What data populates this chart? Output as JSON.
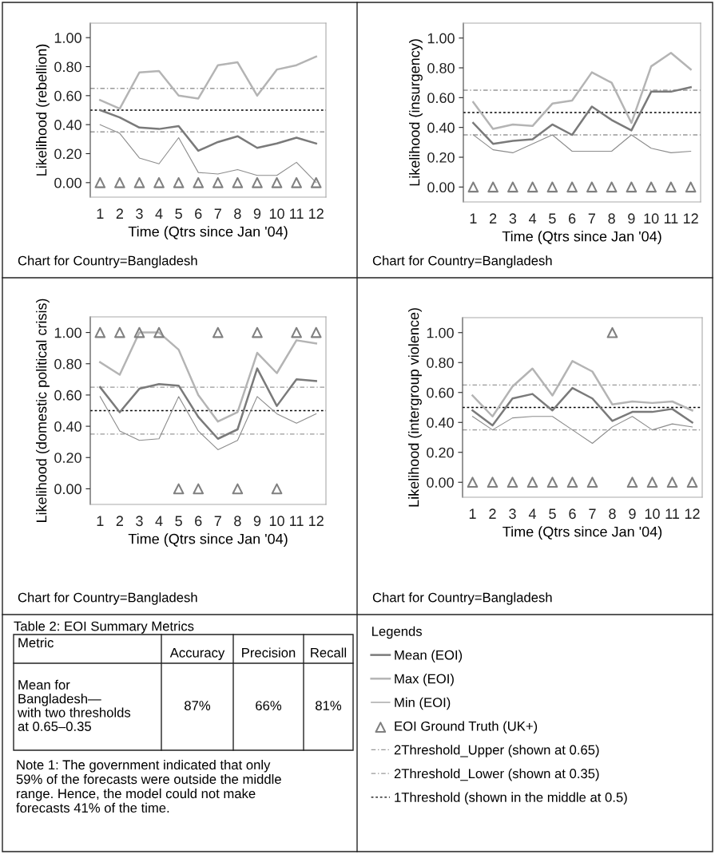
{
  "chart_data": [
    {
      "type": "line",
      "ylabel": "Likelihood (rebellion)",
      "xlabel": "Time (Qtrs since Jan '04)",
      "annotations": [
        "Chart for Country=Bangladesh"
      ],
      "categories": [
        "1",
        "2",
        "3",
        "4",
        "5",
        "6",
        "7",
        "8",
        "9",
        "10",
        "11",
        "12"
      ],
      "ylim": [
        -0.1,
        1.1
      ],
      "yticks": [
        {
          "value": 0,
          "label": "0.00"
        },
        {
          "value": 0.2,
          "label": "0.20"
        },
        {
          "value": 0.4,
          "label": "0.40"
        },
        {
          "value": 0.6,
          "label": "0.60"
        },
        {
          "value": 0.8,
          "label": "0.80"
        },
        {
          "value": 1,
          "label": "1.00"
        }
      ],
      "legend": "bottom right",
      "legend_title": "Legends",
      "series": [
        {
          "name": "Mean (EOI)",
          "color": "#7a7a7a",
          "values": [
            0.5,
            0.45,
            0.38,
            0.37,
            0.39,
            0.22,
            0.28,
            0.32,
            0.24,
            0.27,
            0.31,
            0.27
          ]
        },
        {
          "name": "Max (EOI)",
          "color": "#b4b4b4",
          "values": [
            0.57,
            0.51,
            0.76,
            0.77,
            0.6,
            0.58,
            0.81,
            0.83,
            0.6,
            0.78,
            0.81,
            0.87
          ]
        },
        {
          "name": "Min (EOI)",
          "color": "#8c8c8c",
          "values": [
            0.4,
            0.34,
            0.17,
            0.13,
            0.31,
            0.07,
            0.06,
            0.09,
            0.05,
            0.05,
            0.14,
            0.0
          ]
        },
        {
          "name": "EOI Ground Truth (UK+)",
          "type": "scatter",
          "marker": "triangle",
          "color": "#808080",
          "values": [
            0,
            0,
            0,
            0,
            0,
            0,
            0,
            0,
            0,
            0,
            0,
            0
          ]
        }
      ],
      "ref_lines": [
        {
          "axis": "y",
          "value": 0.65,
          "label": "2Threshold_Upper (shown at 0.65)",
          "color": "#999999",
          "line_style": "dashed"
        },
        {
          "axis": "y",
          "value": 0.35,
          "label": "2Threshold_Lower (shown at 0.35)",
          "color": "#999999",
          "line_style": "dashed"
        },
        {
          "axis": "y",
          "value": 0.5,
          "label": "1Threshold (shown in the middle at 0.5)",
          "color": "#000000",
          "line_style": "dotted"
        }
      ]
    },
    {
      "type": "line",
      "ylabel": "Likelihood (insurgency)",
      "xlabel": "Time (Qtrs since Jan '04)",
      "annotations": [
        "Chart for Country=Bangladesh"
      ],
      "categories": [
        "1",
        "2",
        "3",
        "4",
        "5",
        "6",
        "7",
        "8",
        "9",
        "10",
        "11",
        "12"
      ],
      "ylim": [
        -0.1,
        1.1
      ],
      "yticks": [
        {
          "value": 0,
          "label": "0.00"
        },
        {
          "value": 0.2,
          "label": "0.20"
        },
        {
          "value": 0.4,
          "label": "0.40"
        },
        {
          "value": 0.6,
          "label": "0.60"
        },
        {
          "value": 0.8,
          "label": "0.80"
        },
        {
          "value": 1,
          "label": "1.00"
        }
      ],
      "series": [
        {
          "color": "#7a7a7a",
          "values": [
            0.43,
            0.29,
            0.31,
            0.32,
            0.42,
            0.35,
            0.54,
            0.45,
            0.38,
            0.64,
            0.64,
            0.67
          ]
        },
        {
          "color": "#b4b4b4",
          "values": [
            0.57,
            0.39,
            0.42,
            0.41,
            0.56,
            0.58,
            0.77,
            0.7,
            0.43,
            0.81,
            0.9,
            0.79
          ]
        },
        {
          "color": "#8c8c8c",
          "values": [
            0.35,
            0.25,
            0.23,
            0.29,
            0.35,
            0.24,
            0.24,
            0.24,
            0.35,
            0.26,
            0.23,
            0.24
          ]
        },
        {
          "type": "scatter",
          "marker": "triangle",
          "color": "#808080",
          "values": [
            0,
            0,
            0,
            0,
            0,
            0,
            0,
            0,
            0,
            0,
            0,
            0
          ]
        }
      ],
      "ref_lines": [
        {
          "axis": "y",
          "value": 0.65,
          "color": "#999999",
          "line_style": "dashed"
        },
        {
          "axis": "y",
          "value": 0.35,
          "color": "#999999",
          "line_style": "dashed"
        },
        {
          "axis": "y",
          "value": 0.5,
          "color": "#000000",
          "line_style": "dotted"
        }
      ]
    },
    {
      "type": "line",
      "ylabel": "Likelihood (domestic political crisis)",
      "xlabel": "Time (Qtrs since Jan '04)",
      "annotations": [
        "Chart for Country=Bangladesh"
      ],
      "categories": [
        "1",
        "2",
        "3",
        "4",
        "5",
        "6",
        "7",
        "8",
        "9",
        "10",
        "11",
        "12"
      ],
      "ylim": [
        -0.1,
        1.1
      ],
      "yticks": [
        {
          "value": 0,
          "label": "0.00"
        },
        {
          "value": 0.2,
          "label": "0.20"
        },
        {
          "value": 0.4,
          "label": "0.40"
        },
        {
          "value": 0.6,
          "label": "0.60"
        },
        {
          "value": 0.8,
          "label": "0.80"
        },
        {
          "value": 1,
          "label": "1.00"
        }
      ],
      "series": [
        {
          "color": "#7a7a7a",
          "values": [
            0.65,
            0.49,
            0.64,
            0.67,
            0.66,
            0.46,
            0.32,
            0.38,
            0.77,
            0.53,
            0.7,
            0.69
          ]
        },
        {
          "color": "#b4b4b4",
          "values": [
            0.81,
            0.73,
            1.0,
            1.0,
            0.89,
            0.6,
            0.43,
            0.49,
            0.87,
            0.74,
            0.95,
            0.93
          ]
        },
        {
          "color": "#8c8c8c",
          "values": [
            0.59,
            0.37,
            0.31,
            0.32,
            0.59,
            0.37,
            0.25,
            0.31,
            0.59,
            0.48,
            0.42,
            0.48
          ]
        },
        {
          "type": "scatter",
          "marker": "triangle",
          "color": "#808080",
          "values": [
            1,
            1,
            1,
            1,
            0,
            0,
            1,
            0,
            1,
            0,
            1,
            1
          ]
        }
      ],
      "ref_lines": [
        {
          "axis": "y",
          "value": 0.65,
          "color": "#999999",
          "line_style": "dashed"
        },
        {
          "axis": "y",
          "value": 0.35,
          "color": "#999999",
          "line_style": "dashed"
        },
        {
          "axis": "y",
          "value": 0.5,
          "color": "#000000",
          "line_style": "dotted"
        }
      ]
    },
    {
      "type": "line",
      "ylabel": "Likelihood (intergroup violence)",
      "xlabel": "Time (Qtrs since Jan '04)",
      "annotations": [
        "Chart for Country=Bangladesh"
      ],
      "categories": [
        "1",
        "2",
        "3",
        "4",
        "5",
        "6",
        "7",
        "8",
        "9",
        "10",
        "11",
        "12"
      ],
      "ylim": [
        -0.1,
        1.1
      ],
      "yticks": [
        {
          "value": 0,
          "label": "0.00"
        },
        {
          "value": 0.2,
          "label": "0.20"
        },
        {
          "value": 0.4,
          "label": "0.40"
        },
        {
          "value": 0.6,
          "label": "0.60"
        },
        {
          "value": 0.8,
          "label": "0.80"
        },
        {
          "value": 1,
          "label": "1.00"
        }
      ],
      "series": [
        {
          "color": "#7a7a7a",
          "values": [
            0.48,
            0.38,
            0.56,
            0.59,
            0.48,
            0.63,
            0.56,
            0.41,
            0.47,
            0.47,
            0.49,
            0.4
          ]
        },
        {
          "color": "#b4b4b4",
          "values": [
            0.58,
            0.44,
            0.64,
            0.76,
            0.58,
            0.81,
            0.74,
            0.52,
            0.54,
            0.53,
            0.54,
            0.48
          ]
        },
        {
          "color": "#8c8c8c",
          "values": [
            0.44,
            0.35,
            0.43,
            0.44,
            0.44,
            0.35,
            0.26,
            0.37,
            0.44,
            0.35,
            0.39,
            0.37
          ]
        },
        {
          "type": "scatter",
          "marker": "triangle",
          "color": "#808080",
          "values": [
            0,
            0,
            0,
            0,
            0,
            0,
            0,
            1,
            0,
            0,
            0,
            0
          ]
        }
      ],
      "ref_lines": [
        {
          "axis": "y",
          "value": 0.65,
          "color": "#999999",
          "line_style": "dashed"
        },
        {
          "axis": "y",
          "value": 0.35,
          "color": "#999999",
          "line_style": "dashed"
        },
        {
          "axis": "y",
          "value": 0.5,
          "color": "#000000",
          "line_style": "dotted"
        }
      ]
    },
    {
      "type": "other",
      "title": "Table 2: EOI Summary Metrics",
      "categories": [
        "Accuracy",
        "Precision",
        "Recall"
      ],
      "annotations": [
        "Metric",
        "Mean for\nBangladesh—\nwith two thresholds\nat 0.65–0.35",
        "87%",
        "66%",
        "81%",
        "Note 1: The government indicated that only\n59% of the forecasts were outside the middle\nrange. Hence, the model could not make\nforecasts 41% of the time."
      ]
    }
  ]
}
